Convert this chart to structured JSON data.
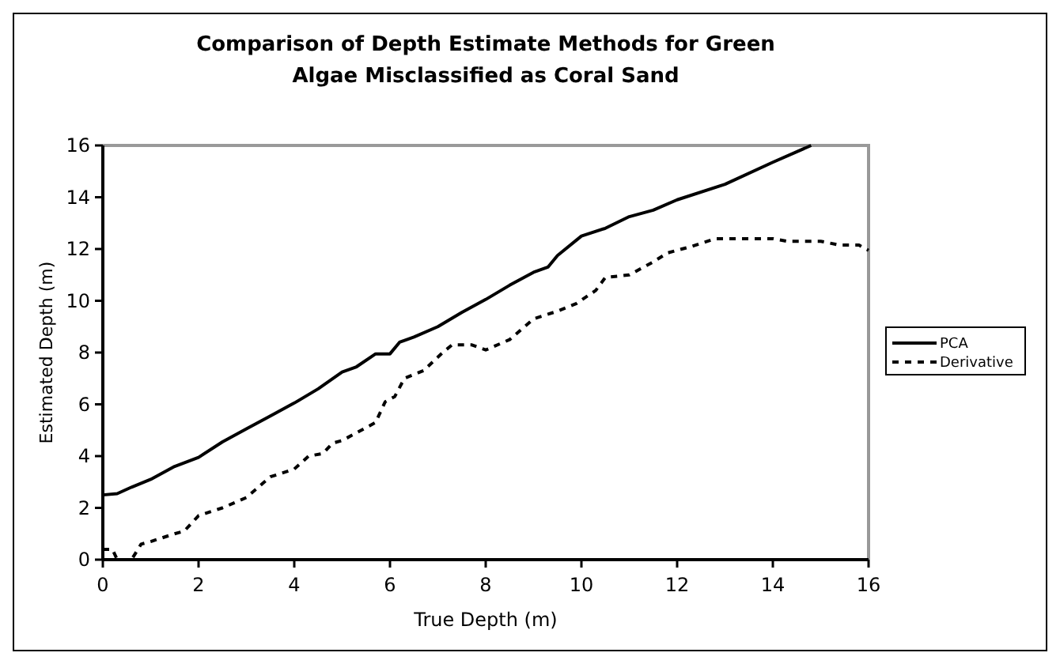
{
  "chart_data": {
    "type": "line",
    "title": "Comparison of Depth Estimate Methods for Green Algae Misclassified as Coral Sand",
    "xlabel": "True Depth (m)",
    "ylabel": "Estimated Depth (m)",
    "xlim": [
      0,
      16
    ],
    "ylim": [
      0,
      16
    ],
    "xticks": [
      0,
      2,
      4,
      6,
      8,
      10,
      12,
      14,
      16
    ],
    "yticks": [
      0,
      2,
      4,
      6,
      8,
      10,
      12,
      14,
      16
    ],
    "grid": false,
    "legend": "right",
    "marker": "none",
    "series": [
      {
        "name": "PCA",
        "color": "#000000",
        "line_style": "solid",
        "x": [
          0,
          0.3,
          0.6,
          0.8,
          1,
          1.5,
          2,
          2.5,
          3,
          3.5,
          4,
          4.5,
          5,
          5.3,
          5.7,
          6,
          6.2,
          6.5,
          7,
          7.5,
          8,
          8.5,
          9,
          9.3,
          9.5,
          10,
          10.5,
          11,
          11.5,
          12,
          13,
          14,
          14.8
        ],
        "values": [
          2.5,
          2.55,
          2.8,
          2.95,
          3.1,
          3.6,
          3.95,
          4.55,
          5.05,
          5.55,
          6.05,
          6.6,
          7.25,
          7.45,
          7.95,
          7.95,
          8.4,
          8.6,
          9,
          9.55,
          10.05,
          10.6,
          11.1,
          11.3,
          11.75,
          12.5,
          12.8,
          13.25,
          13.5,
          13.9,
          14.5,
          15.35,
          16
        ]
      },
      {
        "name": "Derivative",
        "color": "#000000",
        "line_style": "dashed",
        "x": [
          0,
          0.2,
          0.3,
          0.6,
          0.8,
          1,
          1.5,
          1.7,
          2,
          2.5,
          3,
          3.5,
          4,
          4.3,
          4.6,
          4.8,
          5,
          5.3,
          5.7,
          5.9,
          6.1,
          6.3,
          6.7,
          7.1,
          7.3,
          7.7,
          8,
          8.5,
          9,
          9.5,
          9.9,
          10.3,
          10.5,
          11,
          11.5,
          11.8,
          12.3,
          12.8,
          14,
          14.3,
          15,
          15.4,
          15.8,
          16
        ],
        "values": [
          0.4,
          0.4,
          0,
          0,
          0.6,
          0.7,
          1,
          1.1,
          1.7,
          2,
          2.4,
          3.2,
          3.5,
          4,
          4.1,
          4.5,
          4.6,
          4.9,
          5.3,
          6.1,
          6.3,
          7,
          7.3,
          8,
          8.3,
          8.3,
          8.1,
          8.5,
          9.3,
          9.6,
          9.9,
          10.4,
          10.9,
          11,
          11.5,
          11.85,
          12.1,
          12.4,
          12.4,
          12.3,
          12.3,
          12.15,
          12.15,
          11.95
        ]
      }
    ]
  }
}
